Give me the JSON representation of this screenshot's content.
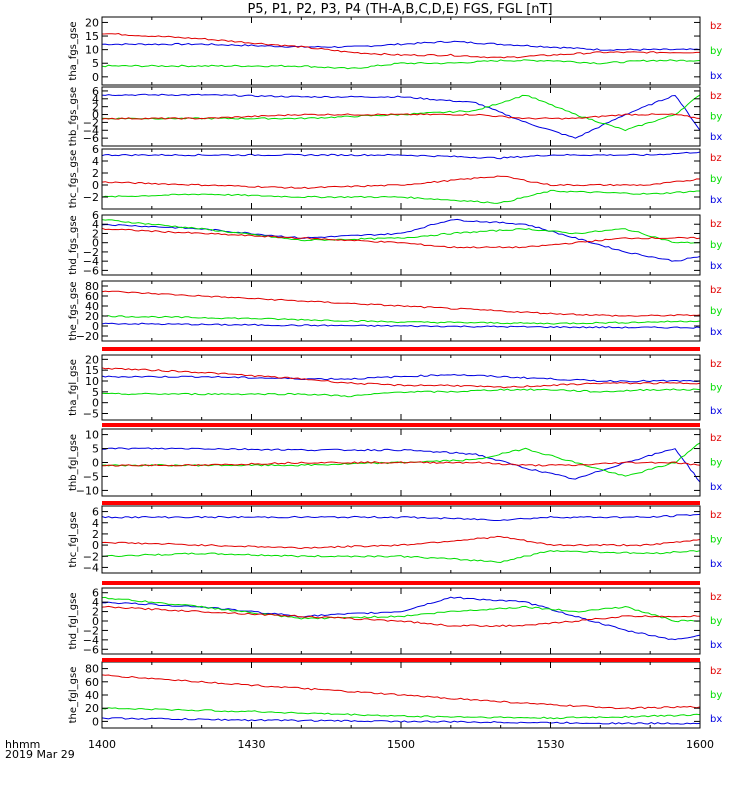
{
  "title": "P5, P1, P2, P3, P4 (TH-A,B,C,D,E) FGS, FGL [nT]",
  "x_axis": {
    "ticks": [
      "1400",
      "1430",
      "1500",
      "1530",
      "1600"
    ],
    "label_line1": "hhmm",
    "label_line2": "2019 Mar 29"
  },
  "legend": [
    {
      "name": "bz",
      "color": "#e00000"
    },
    {
      "name": "by",
      "color": "#00dd00"
    },
    {
      "name": "bx",
      "color": "#0000e0"
    }
  ],
  "chart_data": [
    {
      "type": "line",
      "ylabel": "tha_fgs_gse",
      "ylim": [
        -3,
        22
      ],
      "yticks": [
        0,
        5,
        10,
        15,
        20
      ],
      "x": [
        1400,
        1420,
        1440,
        1450,
        1500,
        1510,
        1520,
        1530,
        1540,
        1550,
        1600
      ],
      "series": [
        {
          "name": "bx",
          "values": [
            12,
            12,
            11,
            11,
            12,
            13,
            12,
            11,
            10,
            10,
            10
          ]
        },
        {
          "name": "by",
          "values": [
            4,
            4,
            4,
            3,
            5,
            5,
            6,
            6,
            5,
            6,
            6
          ]
        },
        {
          "name": "bz",
          "values": [
            16,
            14,
            11,
            9,
            8,
            8,
            7,
            8,
            9,
            9,
            9
          ]
        }
      ]
    },
    {
      "type": "line",
      "ylabel": "thb_fgs_gse",
      "ylim": [
        -8,
        7
      ],
      "yticks": [
        6,
        4,
        2,
        0,
        -2,
        -4,
        -6
      ],
      "x": [
        1400,
        1420,
        1440,
        1500,
        1515,
        1525,
        1535,
        1545,
        1555,
        1600
      ],
      "series": [
        {
          "name": "bx",
          "values": [
            5,
            5,
            4.5,
            4.5,
            3,
            -2,
            -6,
            0,
            5,
            -4
          ]
        },
        {
          "name": "by",
          "values": [
            -1,
            -1,
            -1,
            0,
            1,
            5,
            0,
            -4,
            0,
            5
          ]
        },
        {
          "name": "bz",
          "values": [
            -1,
            -1,
            0,
            0,
            0,
            -1,
            -1,
            0,
            0,
            -1
          ]
        }
      ]
    },
    {
      "type": "line",
      "ylabel": "thc_fgs_gse",
      "ylim": [
        -4,
        6
      ],
      "yticks": [
        6,
        4,
        2,
        0,
        -2
      ],
      "x": [
        1400,
        1420,
        1440,
        1500,
        1520,
        1530,
        1550,
        1600
      ],
      "series": [
        {
          "name": "bx",
          "values": [
            5,
            5,
            5,
            5,
            4.5,
            5,
            5,
            5.5
          ]
        },
        {
          "name": "by",
          "values": [
            -2,
            -1.5,
            -2,
            -2,
            -3,
            -1,
            -1.5,
            -1
          ]
        },
        {
          "name": "bz",
          "values": [
            0.5,
            0,
            -0.5,
            0,
            1.5,
            0,
            0,
            1
          ]
        }
      ]
    },
    {
      "type": "line",
      "ylabel": "thd_fgs_gse",
      "ylim": [
        -7,
        6
      ],
      "yticks": [
        6,
        4,
        2,
        0,
        -2,
        -4,
        -6
      ],
      "x": [
        1400,
        1420,
        1440,
        1500,
        1510,
        1525,
        1535,
        1545,
        1555,
        1600
      ],
      "series": [
        {
          "name": "bx",
          "values": [
            4,
            3,
            1,
            2,
            5,
            4,
            1,
            -2,
            -4,
            -3
          ]
        },
        {
          "name": "by",
          "values": [
            5,
            3,
            0.5,
            1,
            2,
            3,
            2,
            3,
            0,
            0
          ]
        },
        {
          "name": "bz",
          "values": [
            3,
            2,
            1,
            0,
            -1,
            -1,
            0,
            1,
            1,
            1
          ]
        }
      ]
    },
    {
      "type": "line",
      "ylabel": "the_fgs_gse",
      "ylim": [
        -30,
        90
      ],
      "yticks": [
        80,
        60,
        40,
        20,
        0,
        -20
      ],
      "x": [
        1400,
        1430,
        1500,
        1530,
        1545,
        1600
      ],
      "series": [
        {
          "name": "bx",
          "values": [
            5,
            2,
            0,
            -2,
            -3,
            -3
          ]
        },
        {
          "name": "by",
          "values": [
            20,
            15,
            8,
            5,
            7,
            10
          ]
        },
        {
          "name": "bz",
          "values": [
            70,
            55,
            40,
            25,
            20,
            22
          ]
        }
      ]
    },
    {
      "type": "line",
      "ylabel": "tha_fgl_gse",
      "ylim": [
        -8,
        22
      ],
      "yticks": [
        20,
        15,
        10,
        5,
        0,
        -5
      ],
      "x": [
        1400,
        1420,
        1440,
        1450,
        1500,
        1510,
        1520,
        1530,
        1540,
        1550,
        1600
      ],
      "series": [
        {
          "name": "bx",
          "values": [
            12,
            12,
            11,
            11,
            12,
            13,
            12,
            11,
            10,
            10,
            10
          ]
        },
        {
          "name": "by",
          "values": [
            4,
            4,
            4,
            3,
            5,
            5,
            6,
            6,
            5,
            6,
            6
          ]
        },
        {
          "name": "bz",
          "values": [
            16,
            14,
            11,
            9,
            8,
            8,
            7,
            8,
            9,
            9,
            9
          ]
        }
      ]
    },
    {
      "type": "line",
      "ylabel": "thb_fgl_gse",
      "ylim": [
        -12,
        12
      ],
      "yticks": [
        10,
        5,
        0,
        -5,
        -10
      ],
      "x": [
        1400,
        1420,
        1440,
        1500,
        1515,
        1525,
        1535,
        1545,
        1555,
        1600
      ],
      "series": [
        {
          "name": "bx",
          "values": [
            5,
            5,
            4.5,
            4.5,
            3,
            -2,
            -6,
            0,
            5,
            -7
          ]
        },
        {
          "name": "by",
          "values": [
            -1,
            -1,
            -1,
            0,
            1,
            5,
            0,
            -5,
            0,
            7
          ]
        },
        {
          "name": "bz",
          "values": [
            -1,
            -1,
            0,
            0,
            0,
            -1,
            -1,
            0,
            0,
            -1
          ]
        }
      ]
    },
    {
      "type": "line",
      "ylabel": "thc_fgl_gse",
      "ylim": [
        -5,
        7
      ],
      "yticks": [
        6,
        4,
        2,
        0,
        -2,
        -4
      ],
      "x": [
        1400,
        1420,
        1440,
        1500,
        1520,
        1530,
        1550,
        1600
      ],
      "series": [
        {
          "name": "bx",
          "values": [
            5,
            5,
            5,
            5,
            4.5,
            5,
            5,
            5.5
          ]
        },
        {
          "name": "by",
          "values": [
            -2,
            -1.5,
            -2,
            -2,
            -3,
            -1,
            -1.5,
            -1
          ]
        },
        {
          "name": "bz",
          "values": [
            0.5,
            0,
            -0.5,
            0,
            1.5,
            0,
            0,
            1
          ]
        }
      ]
    },
    {
      "type": "line",
      "ylabel": "thd_fgl_gse",
      "ylim": [
        -7,
        7
      ],
      "yticks": [
        6,
        4,
        2,
        0,
        -2,
        -4,
        -6
      ],
      "x": [
        1400,
        1420,
        1440,
        1500,
        1510,
        1525,
        1535,
        1545,
        1555,
        1600
      ],
      "series": [
        {
          "name": "bx",
          "values": [
            4,
            3,
            1,
            2,
            5,
            4,
            1,
            -2,
            -4,
            -3
          ]
        },
        {
          "name": "by",
          "values": [
            5,
            3,
            0.5,
            1,
            2,
            3,
            2,
            3,
            0,
            0
          ]
        },
        {
          "name": "bz",
          "values": [
            3,
            2,
            1,
            0,
            -1,
            -1,
            0,
            1,
            1,
            1
          ]
        }
      ]
    },
    {
      "type": "line",
      "ylabel": "the_fgl_gse",
      "ylim": [
        -10,
        90
      ],
      "yticks": [
        80,
        60,
        40,
        20,
        0
      ],
      "x": [
        1400,
        1430,
        1500,
        1530,
        1545,
        1600
      ],
      "series": [
        {
          "name": "bx",
          "values": [
            5,
            2,
            0,
            -2,
            -3,
            -3
          ]
        },
        {
          "name": "by",
          "values": [
            20,
            15,
            8,
            5,
            7,
            10
          ]
        },
        {
          "name": "bz",
          "values": [
            70,
            55,
            40,
            25,
            20,
            22
          ]
        }
      ]
    }
  ]
}
